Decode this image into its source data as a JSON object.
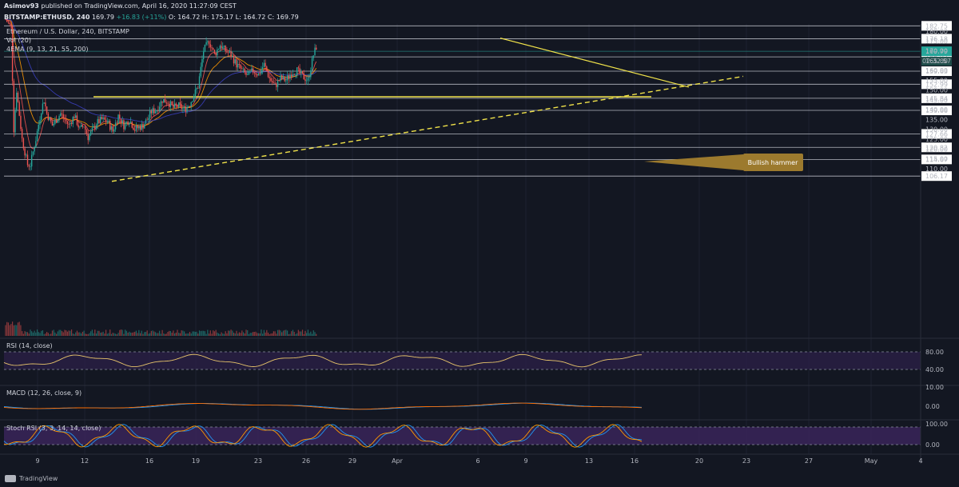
{
  "header": {
    "author": "Asimov93",
    "published_text": "published on TradingView.com, April 16, 2020 11:27:09 CEST",
    "symbol": "BITSTAMP:ETHUSD, 240",
    "last": "169.79",
    "change": "+16.83 (+11%)",
    "open": "O: 164.72",
    "high": "H: 175.17",
    "low": "L: 164.72",
    "close": "C: 169.79"
  },
  "legend": {
    "main": "Ethereum / U.S. Dollar, 240, BITSTAMP",
    "vol": "Vol (20)",
    "ema": "4EMA (9, 13, 21, 55, 200)"
  },
  "panes": {
    "rsi": "RSI (14, close)",
    "macd": "MACD (12, 26, close, 9)",
    "stoch": "Stoch RSI (3, 3, 14, 14, close)"
  },
  "annotation": "Bullish hammer",
  "countdown": "02:32:57",
  "footer": "TradingView",
  "colors": {
    "background": "#131722",
    "up": "#26a69a",
    "down": "#ef5350",
    "trendline": "#f0e24a",
    "level": "#d1d4dc",
    "hammer": "#9c7a2e"
  },
  "chart_data": {
    "type": "candlestick",
    "price_ticks": [
      110,
      115,
      120,
      125,
      130,
      135,
      140,
      145,
      150,
      155,
      160,
      165,
      170,
      175,
      180
    ],
    "level_labels": [
      "182.75",
      "176.18",
      "166.92",
      "159.63",
      "152.99",
      "145.84",
      "139.66",
      "127.66",
      "120.82",
      "114.67",
      "106.17"
    ],
    "last_price_label": "169.79",
    "x_tick_labels": [
      "9",
      "12",
      "16",
      "19",
      "23",
      "26",
      "29",
      "Apr",
      "6",
      "9",
      "13",
      "16",
      "20",
      "23",
      "27",
      "May",
      "4"
    ],
    "rsi_ticks": [
      "80.00",
      "40.00"
    ],
    "macd_ticks": [
      "10.00",
      "0.00"
    ],
    "stoch_ticks": [
      "100.00",
      "0.00"
    ],
    "ylim": [
      102,
      186
    ]
  }
}
